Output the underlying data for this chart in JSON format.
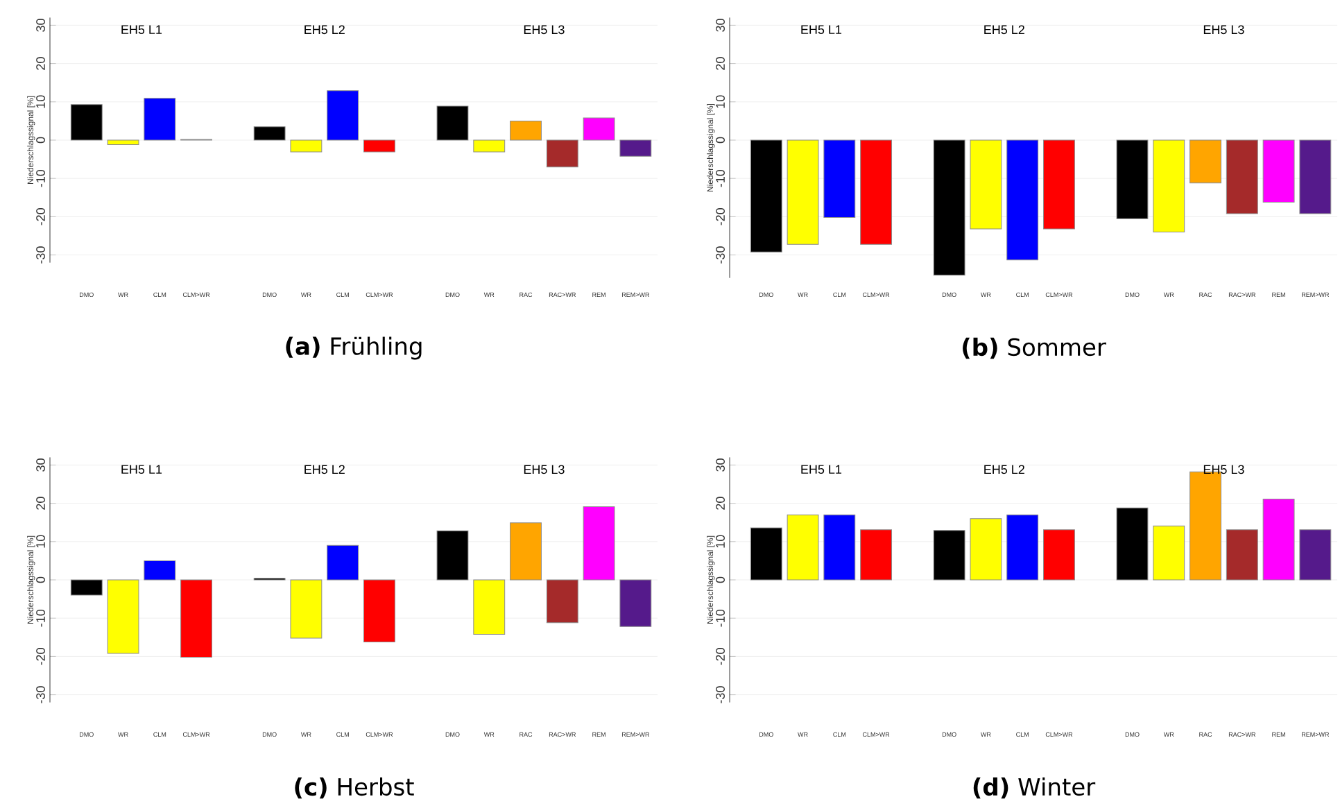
{
  "chart_data": [
    {
      "type": "bar",
      "title": "**(a)** Frühling",
      "ylabel": "Niederschlagssignal [%]",
      "annotations": [
        "EH5 L1",
        "EH5 L2",
        "EH5 L3"
      ],
      "categories": [
        "DMO",
        "WR",
        "CLM",
        "CLM>WR",
        null,
        "DMO",
        "WR",
        "CLM",
        "CLM>WR",
        null,
        "DMO",
        "WR",
        "RAC",
        "RAC>WR",
        "REM",
        "REM>WR"
      ],
      "values": [
        9.3,
        -1.2,
        10.9,
        0.2,
        null,
        3.5,
        -3.1,
        12.9,
        -3.1,
        null,
        8.9,
        -3.1,
        5.0,
        -7.0,
        5.8,
        -4.2
      ],
      "colors": [
        "#000000",
        "#ffff00",
        "#0000ff",
        "#ff0000",
        null,
        "#000000",
        "#ffff00",
        "#0000ff",
        "#ff0000",
        null,
        "#000000",
        "#ffff00",
        "#ffa500",
        "#a52a2a",
        "#ff00ff",
        "#551a8b"
      ],
      "ylim": [
        -32,
        32
      ],
      "yticks": [
        -30,
        -20,
        -10,
        0,
        10,
        20,
        30
      ],
      "grid": "y"
    },
    {
      "type": "bar",
      "title": "**(b)** Sommer",
      "ylabel": "Niederschlagssignal [%]",
      "annotations": [
        "EH5 L1",
        "EH5 L2",
        "EH5 L3"
      ],
      "categories": [
        "DMO",
        "WR",
        "CLM",
        "CLM>WR",
        null,
        "DMO",
        "WR",
        "CLM",
        "CLM>WR",
        null,
        "DMO",
        "WR",
        "RAC",
        "RAC>WR",
        "REM",
        "REM>WR"
      ],
      "values": [
        -29.2,
        -27.2,
        -20.2,
        -27.2,
        null,
        -35.3,
        -23.2,
        -31.3,
        -23.2,
        null,
        -20.5,
        -24.0,
        -11.2,
        -19.2,
        -16.2,
        -19.2
      ],
      "colors": [
        "#000000",
        "#ffff00",
        "#0000ff",
        "#ff0000",
        null,
        "#000000",
        "#ffff00",
        "#0000ff",
        "#ff0000",
        null,
        "#000000",
        "#ffff00",
        "#ffa500",
        "#a52a2a",
        "#ff00ff",
        "#551a8b"
      ],
      "ylim": [
        -36,
        32
      ],
      "yticks": [
        -30,
        -20,
        -10,
        0,
        10,
        20,
        30
      ],
      "grid": "y"
    },
    {
      "type": "bar",
      "title": "**(c)** Herbst",
      "ylabel": "Niederschlagssignal [%]",
      "annotations": [
        "EH5 L1",
        "EH5 L2",
        "EH5 L3"
      ],
      "categories": [
        "DMO",
        "WR",
        "CLM",
        "CLM>WR",
        null,
        "DMO",
        "WR",
        "CLM",
        "CLM>WR",
        null,
        "DMO",
        "WR",
        "RAC",
        "RAC>WR",
        "REM",
        "REM>WR"
      ],
      "values": [
        -4.0,
        -19.2,
        5.0,
        -20.2,
        null,
        0.4,
        -15.2,
        9.0,
        -16.2,
        null,
        12.8,
        -14.2,
        14.9,
        -11.2,
        19.1,
        -12.2
      ],
      "colors": [
        "#000000",
        "#ffff00",
        "#0000ff",
        "#ff0000",
        null,
        "#000000",
        "#ffff00",
        "#0000ff",
        "#ff0000",
        null,
        "#000000",
        "#ffff00",
        "#ffa500",
        "#a52a2a",
        "#ff00ff",
        "#551a8b"
      ],
      "ylim": [
        -32,
        32
      ],
      "yticks": [
        -30,
        -20,
        -10,
        0,
        10,
        20,
        30
      ],
      "grid": "y"
    },
    {
      "type": "bar",
      "title": "**(d)** Winter",
      "ylabel": "Niederschlagssignal [%]",
      "annotations": [
        "EH5 L1",
        "EH5 L2",
        "EH5 L3"
      ],
      "categories": [
        "DMO",
        "WR",
        "CLM",
        "CLM>WR",
        null,
        "DMO",
        "WR",
        "CLM",
        "CLM>WR",
        null,
        "DMO",
        "WR",
        "RAC",
        "RAC>WR",
        "REM",
        "REM>WR"
      ],
      "values": [
        13.6,
        17.0,
        17.0,
        13.1,
        null,
        12.9,
        16.0,
        17.0,
        13.1,
        null,
        18.8,
        14.1,
        28.2,
        13.1,
        21.1,
        13.1
      ],
      "colors": [
        "#000000",
        "#ffff00",
        "#0000ff",
        "#ff0000",
        null,
        "#000000",
        "#ffff00",
        "#0000ff",
        "#ff0000",
        null,
        "#000000",
        "#ffff00",
        "#ffa500",
        "#a52a2a",
        "#ff00ff",
        "#551a8b"
      ],
      "ylim": [
        -32,
        32
      ],
      "yticks": [
        -30,
        -20,
        -10,
        0,
        10,
        20,
        30
      ],
      "grid": "y"
    }
  ]
}
